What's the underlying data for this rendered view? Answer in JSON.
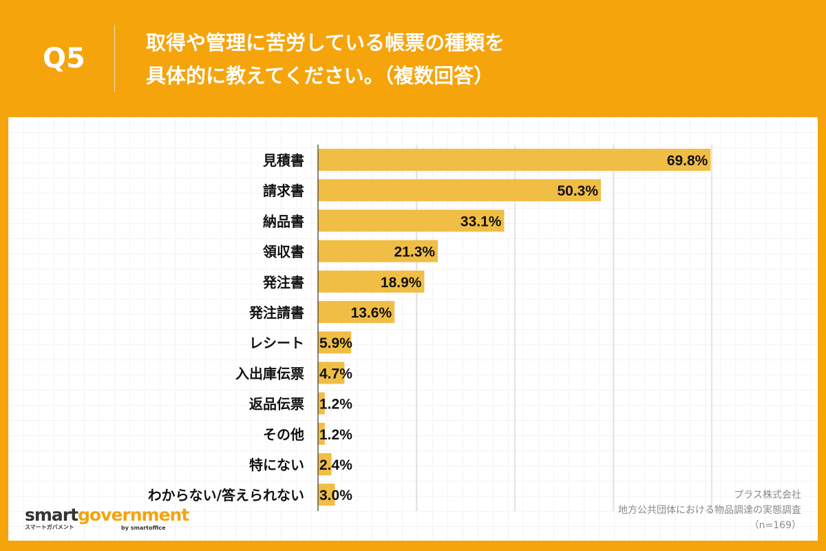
{
  "header": {
    "question": "Q5",
    "title_line1": "取得や管理に苦労している帳票の種類を",
    "title_line2": "具体的に教えてください。（複数回答）"
  },
  "colors": {
    "background": "#F5A40C",
    "bar": "#F0BE45"
  },
  "chart_data": {
    "type": "bar",
    "orientation": "horizontal",
    "categories": [
      "見積書",
      "請求書",
      "納品書",
      "領収書",
      "発注書",
      "発注請書",
      "レシート",
      "入出庫伝票",
      "返品伝票",
      "その他",
      "特にない",
      "わからない/答えられない"
    ],
    "values": [
      69.8,
      50.3,
      33.1,
      21.3,
      18.9,
      13.6,
      5.9,
      4.7,
      1.2,
      1.2,
      2.4,
      3.0
    ],
    "data_labels": [
      "69.8%",
      "50.3%",
      "33.1%",
      "21.3%",
      "18.9%",
      "13.6%",
      "5.9%",
      "4.7%",
      "1.2%",
      "1.2%",
      "2.4%",
      "3.0%"
    ],
    "xlim": [
      0,
      70
    ],
    "grid": true,
    "unit": "%"
  },
  "credit": {
    "line1": "プラス株式会社",
    "line2": "地方公共団体における物品調達の実態調査",
    "line3": "（n=169）"
  },
  "logo": {
    "part1": "smart",
    "part2": "government",
    "sub": "スマートガバメント",
    "by": "by smartoffice"
  }
}
